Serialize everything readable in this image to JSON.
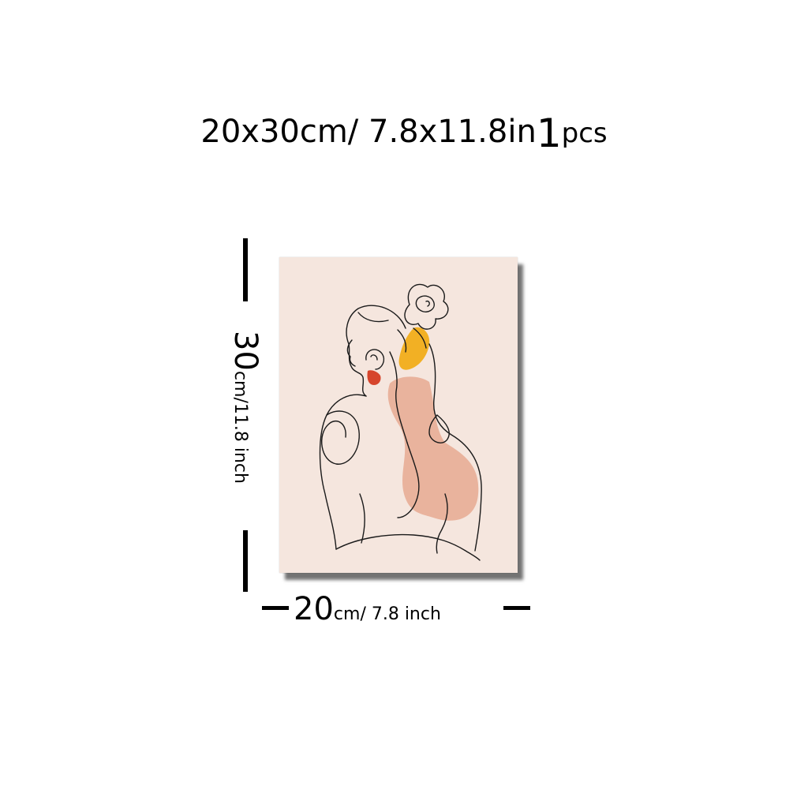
{
  "title": {
    "dims": "20x30cm/ 7.8x11.8in",
    "qty_number": "1",
    "qty_unit": "pcs"
  },
  "height_label": {
    "number": "30",
    "unit": "cm",
    "rest": "/11.8 inch"
  },
  "width_label": {
    "number": "20",
    "unit": "cm",
    "rest": "/ 7.8 inch"
  },
  "artwork": {
    "background_color": "#f5e6de",
    "blush_color": "#e8ad96",
    "yellow_color": "#f2b024",
    "earring_color": "#d6452c",
    "line_color": "#1a1a1a"
  }
}
